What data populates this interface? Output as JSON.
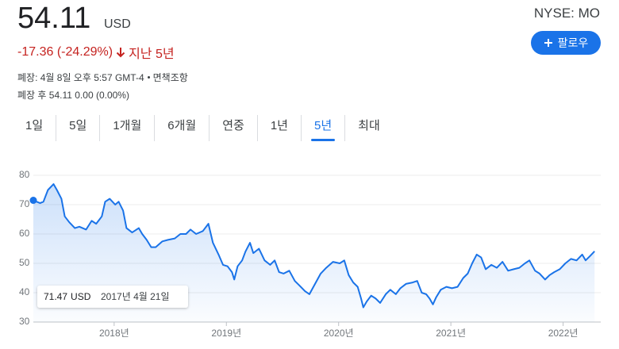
{
  "price": "54.11",
  "currency": "USD",
  "exchange": "NYSE: MO",
  "follow": "팔로우",
  "change": "-17.36 (-24.29%)",
  "period": "지난 5년",
  "status": "폐장: 4월 8일 오후 5:57 GMT-4",
  "disclaimer": "면책조항",
  "after_hours": "폐장 후 54.11 0.00 (0.00%)",
  "tabs": [
    "1일",
    "5일",
    "1개월",
    "6개월",
    "연중",
    "1년",
    "5년",
    "최대"
  ],
  "selected_tab": 6,
  "chart_data": {
    "type": "line",
    "color": "#1a73e8",
    "x": [
      2017.28,
      2017.34,
      2017.37,
      2017.41,
      2017.46,
      2017.49,
      2017.53,
      2017.56,
      2017.6,
      2017.65,
      2017.69,
      2017.75,
      2017.8,
      2017.84,
      2017.89,
      2017.92,
      2017.96,
      2018.01,
      2018.04,
      2018.08,
      2018.11,
      2018.16,
      2018.22,
      2018.25,
      2018.29,
      2018.33,
      2018.37,
      2018.43,
      2018.48,
      2018.54,
      2018.59,
      2018.64,
      2018.68,
      2018.73,
      2018.79,
      2018.84,
      2018.88,
      2018.93,
      2018.97,
      2019.01,
      2019.05,
      2019.07,
      2019.1,
      2019.14,
      2019.17,
      2019.21,
      2019.24,
      2019.29,
      2019.34,
      2019.39,
      2019.43,
      2019.47,
      2019.51,
      2019.56,
      2019.61,
      2019.65,
      2019.7,
      2019.74,
      2019.79,
      2019.84,
      2019.89,
      2019.95,
      2020.01,
      2020.05,
      2020.09,
      2020.13,
      2020.17,
      2020.2,
      2020.22,
      2020.25,
      2020.29,
      2020.33,
      2020.37,
      2020.42,
      2020.46,
      2020.51,
      2020.55,
      2020.6,
      2020.66,
      2020.7,
      2020.74,
      2020.78,
      2020.81,
      2020.84,
      2020.87,
      2020.91,
      2020.96,
      2021.01,
      2021.06,
      2021.11,
      2021.15,
      2021.19,
      2021.23,
      2021.27,
      2021.31,
      2021.36,
      2021.41,
      2021.46,
      2021.51,
      2021.56,
      2021.61,
      2021.66,
      2021.7,
      2021.75,
      2021.79,
      2021.84,
      2021.88,
      2021.92,
      2021.97,
      2022.02,
      2022.07,
      2022.12,
      2022.17,
      2022.2,
      2022.24,
      2022.28
    ],
    "values": [
      71.47,
      70.5,
      71,
      75,
      77,
      75,
      72,
      66,
      64,
      62,
      62.5,
      61.5,
      64.5,
      63.5,
      66,
      71,
      72,
      70,
      71,
      68,
      62,
      60.5,
      62,
      60,
      58,
      55.5,
      55.5,
      57.5,
      58,
      58.5,
      60,
      60,
      61.5,
      60,
      61,
      63.5,
      57,
      53,
      49.5,
      49,
      47,
      44.5,
      49,
      51,
      54,
      57,
      53.5,
      55,
      51,
      49.5,
      51,
      47,
      46.5,
      47.5,
      44,
      42.5,
      40.5,
      39.5,
      43,
      46.5,
      48.5,
      50.5,
      50,
      51,
      46,
      43.5,
      42,
      38,
      35,
      37,
      39,
      38,
      36.5,
      39.5,
      41,
      39.5,
      41.5,
      43,
      43.5,
      44,
      40,
      39.5,
      38,
      36,
      38.5,
      41,
      42,
      41.5,
      42,
      45,
      46.5,
      50,
      53,
      52,
      48,
      49.5,
      48.5,
      50.5,
      47.5,
      48,
      48.5,
      50,
      51,
      47.5,
      46.5,
      44.5,
      46,
      47,
      48,
      50,
      51.5,
      51,
      53,
      51,
      52.5,
      54.11
    ],
    "xlim": [
      2017.28,
      2022.3
    ],
    "ylim": [
      30,
      80
    ],
    "yticks": [
      30,
      40,
      50,
      60,
      70,
      80
    ],
    "xticks": [
      {
        "value": 2018,
        "label": "2018년"
      },
      {
        "value": 2019,
        "label": "2019년"
      },
      {
        "value": 2020,
        "label": "2020년"
      },
      {
        "value": 2021,
        "label": "2021년"
      },
      {
        "value": 2022,
        "label": "2022년"
      }
    ],
    "grid": true,
    "tooltip": {
      "date": "2017년 4월 21일"
    }
  }
}
